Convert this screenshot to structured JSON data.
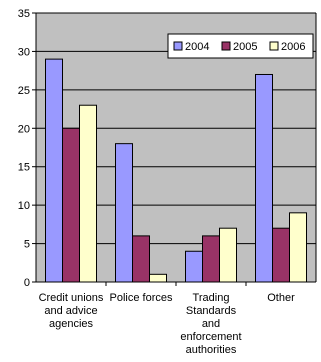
{
  "chart_data": {
    "type": "bar",
    "title": "",
    "xlabel": "",
    "ylabel": "",
    "ylim": [
      0,
      35
    ],
    "yticks": [
      0,
      5,
      10,
      15,
      20,
      25,
      30,
      35
    ],
    "grid": true,
    "legend_position": "top-right",
    "categories": [
      [
        "Credit unions",
        "and advice",
        "agencies"
      ],
      [
        "Police forces"
      ],
      [
        "Trading",
        "Standards",
        "and",
        "enforcement",
        "authorities"
      ],
      [
        "Other"
      ]
    ],
    "series": [
      {
        "name": "2004",
        "color": "#9999ff",
        "values": [
          29,
          18,
          4,
          27
        ]
      },
      {
        "name": "2005",
        "color": "#993366",
        "values": [
          20,
          6,
          6,
          7
        ]
      },
      {
        "name": "2006",
        "color": "#ffffcc",
        "values": [
          23,
          1,
          7,
          9
        ]
      }
    ],
    "plot_background": "#c0c0c0"
  }
}
